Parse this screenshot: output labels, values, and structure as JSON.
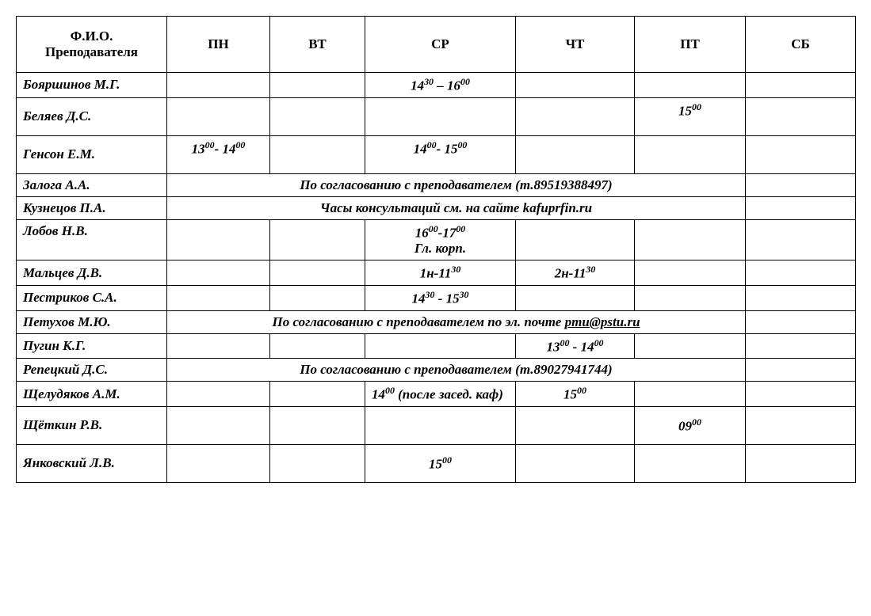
{
  "columns": [
    "Ф.И.О. Преподавателя",
    "ПН",
    "ВТ",
    "СР",
    "ЧТ",
    "ПТ",
    "СБ"
  ],
  "rows": {
    "boyarshinov": {
      "name": "Бояршинов М.Г.",
      "wed_a": "14",
      "wed_am": "30",
      "wed_sep": " – ",
      "wed_b": "16",
      "wed_bm": "00"
    },
    "belyaev": {
      "name": "Беляев Д.С.",
      "fri_a": "15",
      "fri_am": "00"
    },
    "genson": {
      "name": "Генсон Е.М.",
      "mon_a": "13",
      "mon_am": "00",
      "mon_sep": "- ",
      "mon_b": "14",
      "mon_bm": "00",
      "wed_a": "14",
      "wed_am": "00",
      "wed_sep": "- ",
      "wed_b": "15",
      "wed_bm": "00"
    },
    "zaloga": {
      "name": "Залога А.А.",
      "merged": "По согласованию с преподавателем (т.89519388497)"
    },
    "kuznetsov": {
      "name": "Кузнецов П.А.",
      "merged": "Часы консультаций см. на сайте  kafuprfin.ru"
    },
    "lobov": {
      "name": "Лобов Н.В.",
      "wed_a": "16",
      "wed_am": "00",
      "wed_sep": "-",
      "wed_b": "17",
      "wed_bm": "00",
      "wed_l2": "Гл. корп."
    },
    "maltsev": {
      "name": "Мальцев Д.В.",
      "wed_txt": "1н-11",
      "wed_m": "30",
      "thu_txt": "2н-11",
      "thu_m": "30"
    },
    "pestrikov": {
      "name": "Пестриков С.А.",
      "wed_a": "14",
      "wed_am": "30",
      "wed_sep": " - ",
      "wed_b": "15",
      "wed_bm": "30"
    },
    "petukhov": {
      "name": "Петухов М.Ю.",
      "merged_pre": "По согласованию с преподавателем по эл. почте  ",
      "mail": "pmu@pstu.ru"
    },
    "pugin": {
      "name": "Пугин К.Г.",
      "thu_a": "13",
      "thu_am": "00",
      "thu_sep": " - ",
      "thu_b": "14",
      "thu_bm": "00"
    },
    "repetsky": {
      "name": "Репецкий Д.С.",
      "merged": "По согласованию с преподавателем (т.89027941744)"
    },
    "scheludyakov": {
      "name": "Щелудяков А.М.",
      "wed_a": "14",
      "wed_am": "00",
      "wed_post": " (после засед. каф)",
      "thu_a": "15",
      "thu_am": "00"
    },
    "schetkin": {
      "name": "Щёткин Р.В.",
      "fri_a": "09",
      "fri_am": "00"
    },
    "yankovsky": {
      "name": "Янковский Л.В.",
      "wed_a": "15",
      "wed_am": "00"
    }
  },
  "style": {
    "font": "Times New Roman",
    "border_color": "#000000",
    "background": "#ffffff",
    "text_color": "#000000",
    "cell_font_size_pt": 13,
    "header_font_size_pt": 13
  }
}
